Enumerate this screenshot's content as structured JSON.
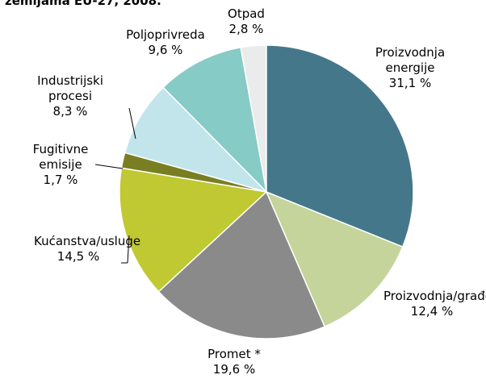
{
  "chart_data": {
    "type": "pie",
    "title": "zemljama EU-27, 2008.",
    "categories": [
      "Proizvodnja energije",
      "Proizvodnja/građevina",
      "Promet *",
      "Kućanstva/usluge",
      "Fugitivne emisije",
      "Industrijski procesi",
      "Poljoprivreda",
      "Otpad"
    ],
    "values": [
      31.1,
      12.4,
      19.6,
      14.5,
      1.7,
      8.3,
      9.6,
      2.8
    ],
    "value_labels": [
      "31,1 %",
      "12,4 %",
      "19,6 %",
      "14,5 %",
      "1,7 %",
      "8,3 %",
      "9,6 %",
      "2,8 %"
    ],
    "colors": [
      "#45778a",
      "#c5d49a",
      "#8a8a8b",
      "#c0c832",
      "#7a7e22",
      "#c2e5ec",
      "#86cbc5",
      "#e9eceb"
    ]
  }
}
